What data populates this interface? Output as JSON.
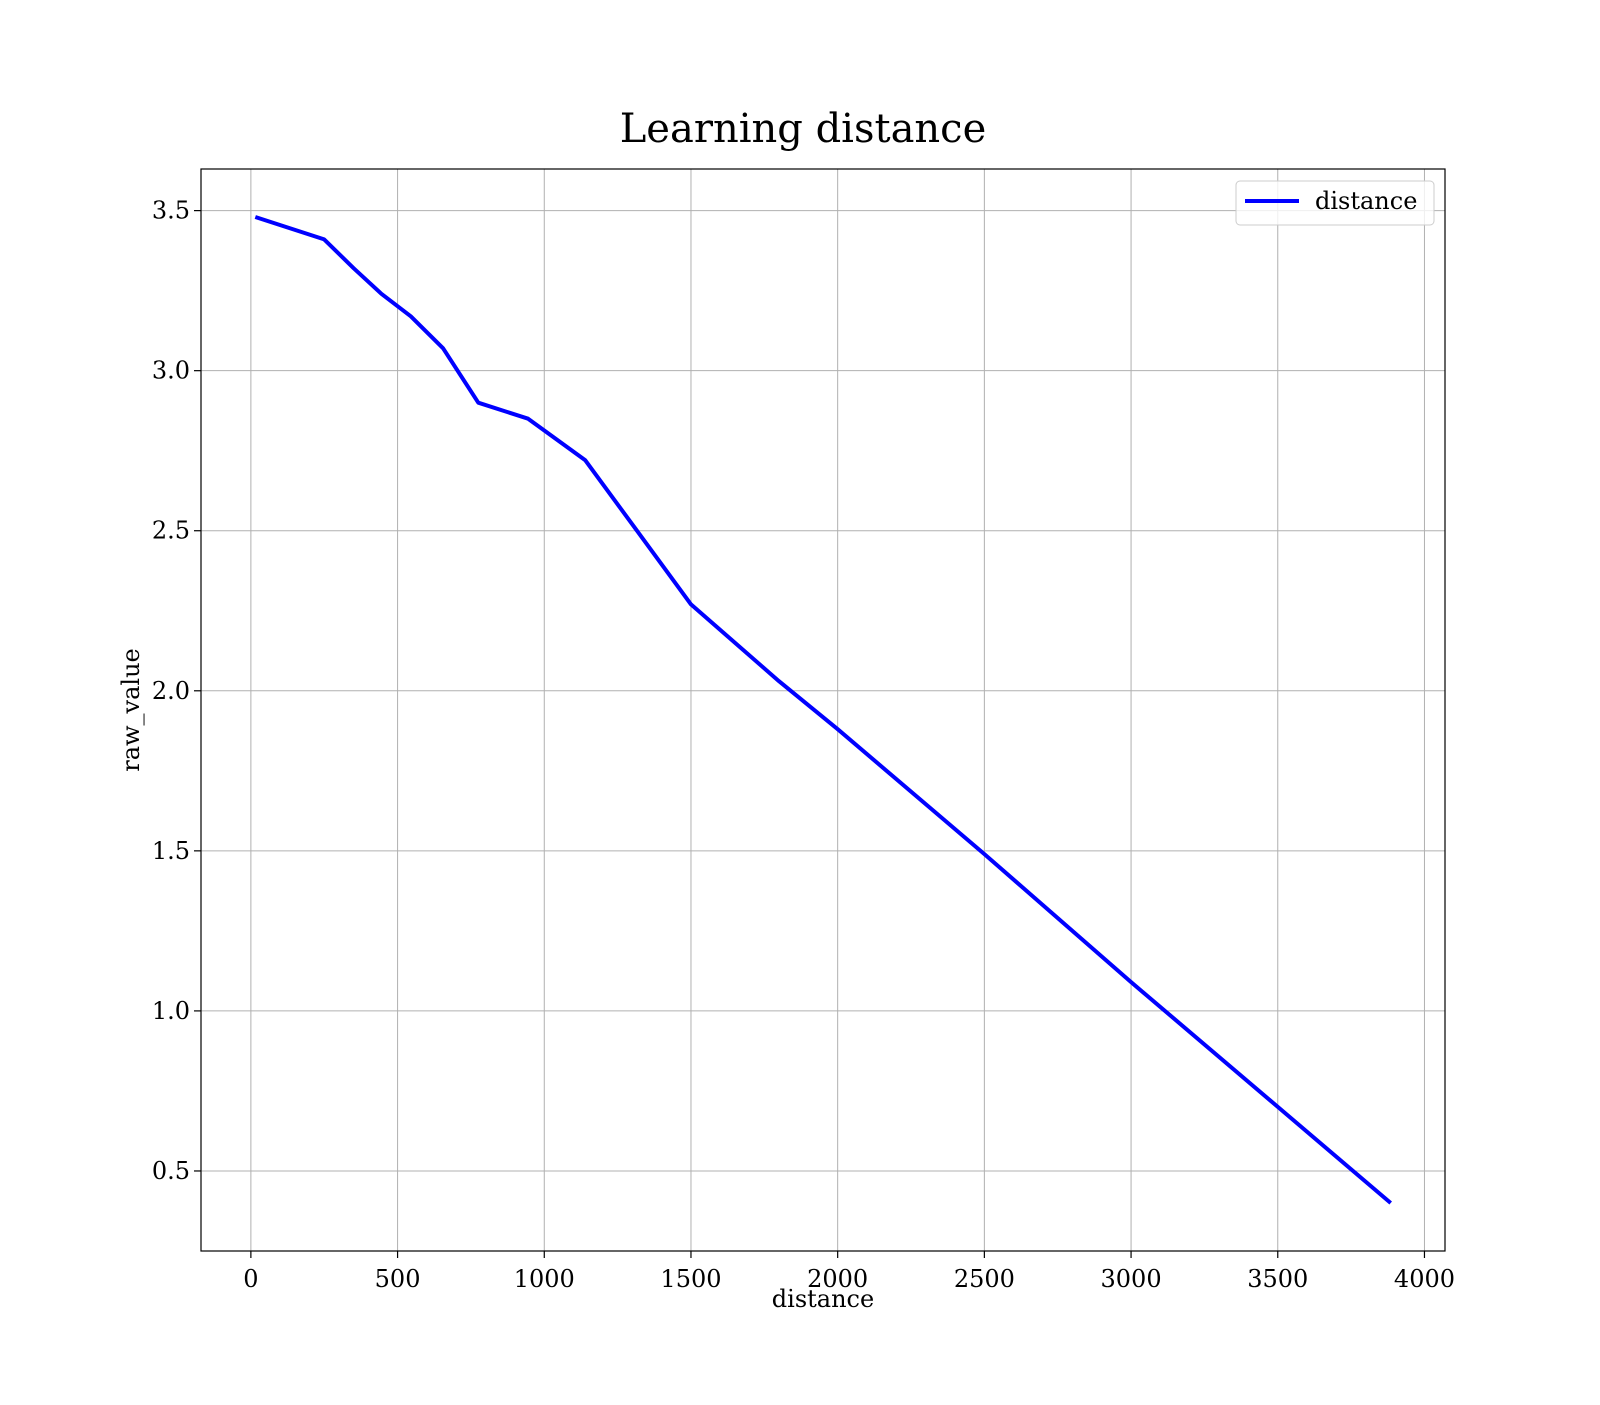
{
  "chart_data": {
    "type": "line",
    "title": "Learning distance",
    "xlabel": "distance",
    "ylabel": "raw_value",
    "xlim": [
      -170,
      4070
    ],
    "ylim": [
      0.25,
      3.63
    ],
    "xticks": [
      0,
      500,
      1000,
      1500,
      2000,
      2500,
      3000,
      3500,
      4000
    ],
    "xtick_labels": [
      "0",
      "500",
      "1000",
      "1500",
      "2000",
      "2500",
      "3000",
      "3500",
      "4000"
    ],
    "yticks": [
      0.5,
      1.0,
      1.5,
      2.0,
      2.5,
      3.0,
      3.5
    ],
    "ytick_labels": [
      "0.5",
      "1.0",
      "1.5",
      "2.0",
      "2.5",
      "3.0",
      "3.5"
    ],
    "grid": true,
    "legend_position": "top-right",
    "series": [
      {
        "name": "distance",
        "color": "#0000ff",
        "x": [
          15,
          250,
          350,
          445,
          545,
          655,
          775,
          945,
          1140,
          1500,
          1800,
          2000,
          2500,
          3000,
          3500,
          3885
        ],
        "y": [
          3.48,
          3.41,
          3.32,
          3.24,
          3.17,
          3.07,
          2.9,
          2.85,
          2.72,
          2.27,
          2.03,
          1.88,
          1.49,
          1.09,
          0.7,
          0.4
        ]
      }
    ]
  }
}
